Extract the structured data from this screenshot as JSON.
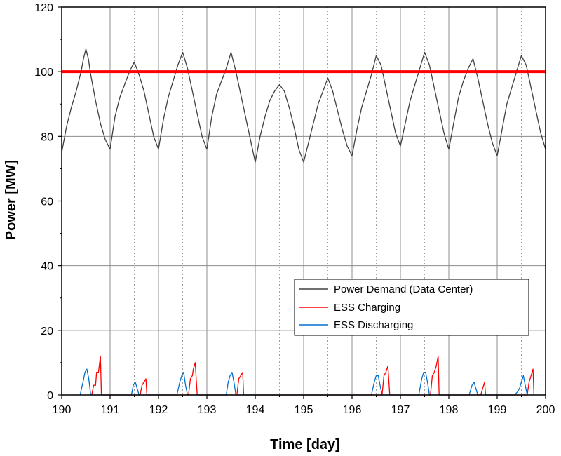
{
  "chart_data": {
    "type": "line",
    "xlabel": "Time [day]",
    "ylabel": "Power [MW]",
    "xlim": [
      190,
      200
    ],
    "ylim": [
      0,
      120
    ],
    "xticks": [
      190,
      191,
      192,
      193,
      194,
      195,
      196,
      197,
      198,
      199,
      200
    ],
    "yticks": [
      0,
      20,
      40,
      60,
      80,
      100,
      120
    ],
    "grid": true,
    "legend_position": "lower-right",
    "threshold": {
      "value": 100,
      "color": "#ff0000"
    },
    "series": [
      {
        "name": "Power Demand (Data Center)",
        "color": "#404040",
        "x": [
          190.0,
          190.1,
          190.2,
          190.3,
          190.4,
          190.45,
          190.5,
          190.55,
          190.6,
          190.7,
          190.8,
          190.9,
          191.0,
          191.1,
          191.2,
          191.3,
          191.4,
          191.5,
          191.6,
          191.7,
          191.8,
          191.9,
          192.0,
          192.1,
          192.2,
          192.3,
          192.4,
          192.5,
          192.6,
          192.7,
          192.8,
          192.9,
          193.0,
          193.1,
          193.2,
          193.3,
          193.4,
          193.5,
          193.6,
          193.7,
          193.8,
          193.9,
          194.0,
          194.1,
          194.2,
          194.3,
          194.4,
          194.5,
          194.6,
          194.7,
          194.8,
          194.9,
          195.0,
          195.1,
          195.2,
          195.3,
          195.4,
          195.5,
          195.6,
          195.7,
          195.8,
          195.9,
          196.0,
          196.1,
          196.2,
          196.3,
          196.4,
          196.5,
          196.6,
          196.7,
          196.8,
          196.9,
          197.0,
          197.1,
          197.2,
          197.3,
          197.4,
          197.5,
          197.6,
          197.7,
          197.8,
          197.9,
          198.0,
          198.1,
          198.2,
          198.3,
          198.4,
          198.5,
          198.6,
          198.7,
          198.8,
          198.9,
          199.0,
          199.1,
          199.2,
          199.3,
          199.4,
          199.5,
          199.6,
          199.7,
          199.8,
          199.9,
          200.0
        ],
        "y": [
          75,
          83,
          89,
          94,
          100,
          104,
          107,
          104,
          99,
          91,
          84,
          79,
          76,
          86,
          92,
          96,
          100,
          103,
          99,
          94,
          87,
          80,
          76,
          85,
          92,
          97,
          102,
          106,
          101,
          94,
          87,
          80,
          76,
          86,
          93,
          97,
          101,
          106,
          100,
          93,
          86,
          79,
          72,
          80,
          86,
          91,
          94,
          96,
          94,
          89,
          83,
          76,
          72,
          78,
          84,
          90,
          94,
          98,
          94,
          88,
          82,
          77,
          74,
          82,
          89,
          94,
          99,
          105,
          102,
          95,
          88,
          81,
          77,
          84,
          91,
          96,
          101,
          106,
          102,
          95,
          88,
          81,
          76,
          84,
          92,
          97,
          101,
          104,
          98,
          91,
          84,
          78,
          74,
          82,
          90,
          95,
          100,
          105,
          102,
          95,
          88,
          81,
          76
        ]
      },
      {
        "name": "ESS Charging",
        "color": "#ff0000",
        "x": [
          190.62,
          190.66,
          190.7,
          190.72,
          190.76,
          190.8,
          190.82,
          190.84,
          191.62,
          191.66,
          191.7,
          191.74,
          191.76,
          192.62,
          192.66,
          192.7,
          192.72,
          192.76,
          192.8,
          192.82,
          193.62,
          193.66,
          193.7,
          193.74,
          193.76,
          196.62,
          196.66,
          196.7,
          196.74,
          196.78,
          196.8,
          197.62,
          197.66,
          197.7,
          197.74,
          197.78,
          197.8,
          198.66,
          198.7,
          198.74,
          198.76,
          199.62,
          199.66,
          199.7,
          199.74,
          199.76
        ],
        "y": [
          0,
          3,
          3,
          7,
          7,
          12,
          0,
          0,
          0,
          3,
          4,
          5,
          0,
          0,
          5,
          6,
          8,
          10,
          0,
          0,
          0,
          5,
          6,
          7,
          0,
          0,
          6,
          7,
          9,
          0,
          0,
          0,
          6,
          7,
          9,
          12,
          0,
          0,
          2,
          4,
          0,
          0,
          4,
          6,
          8,
          0
        ]
      },
      {
        "name": "ESS Discharging",
        "color": "#0070d0",
        "x": [
          190.38,
          190.44,
          190.48,
          190.52,
          190.56,
          190.6,
          191.44,
          191.48,
          191.52,
          191.56,
          191.6,
          192.38,
          192.44,
          192.48,
          192.52,
          192.56,
          192.6,
          193.4,
          193.44,
          193.48,
          193.52,
          193.56,
          193.6,
          196.4,
          196.46,
          196.5,
          196.54,
          196.58,
          196.62,
          197.38,
          197.44,
          197.48,
          197.52,
          197.56,
          197.6,
          198.42,
          198.48,
          198.52,
          198.56,
          198.6,
          199.36,
          199.42,
          199.46,
          199.5,
          199.54,
          199.58,
          199.62
        ],
        "y": [
          0,
          4,
          7,
          8,
          5,
          0,
          0,
          3,
          4,
          2,
          0,
          0,
          4,
          6,
          7,
          3,
          0,
          0,
          4,
          6,
          7,
          4,
          0,
          0,
          4,
          6,
          6,
          3,
          0,
          0,
          5,
          7,
          7,
          4,
          0,
          0,
          3,
          4,
          2,
          0,
          0,
          1,
          2,
          4,
          6,
          3,
          0
        ]
      }
    ]
  }
}
